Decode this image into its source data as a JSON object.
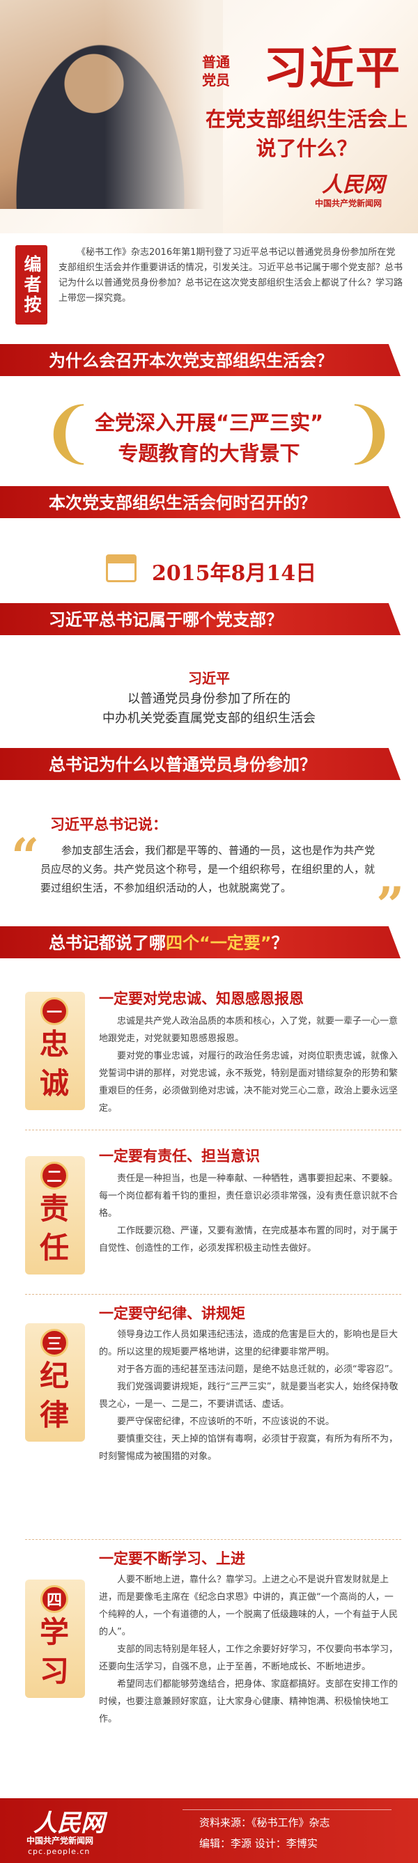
{
  "hero": {
    "line1": "普通",
    "line2": "党员",
    "name": "习近平",
    "subtitle": "在党支部组织生活会上说了什么？",
    "logo": "人民网",
    "logo_sub": "中国共产党新闻网"
  },
  "editor_note": {
    "badge": "编者按",
    "text": "《秘书工作》杂志2016年第1期刊登了习近平总书记以普通党员身份参加所在党支部组织生活会并作重要讲话的情况，引发关注。习近平总书记属于哪个党支部？总书记为什么以普通党员身份参加？总书记在这次党支部组织生活会上都说了什么？学习路上带您一探究竟。"
  },
  "sections": {
    "s1": "为什么会召开本次党支部组织生活会？",
    "s2": "本次党支部组织生活会何时召开的？",
    "s3": "习近平总书记属于哪个党支部？",
    "s4": "总书记为什么以普通党员身份参加？",
    "s5_pre": "总书记都说了哪",
    "s5_gold": "四个“一定要”",
    "s5_post": "？"
  },
  "background": {
    "line1": "全党深入开展“三严三实”",
    "line2": "专题教育的大背景下"
  },
  "date": "2015年8月14日",
  "branch": {
    "name": "习近平",
    "line1": "以普通党员身份参加了所在的",
    "line2": "中办机关党委直属党支部的组织生活会"
  },
  "reason": {
    "head": "习近平总书记说：",
    "text": "参加支部生活会，我们都是平等的、普通的一员，这也是作为共产党员应尽的义务。共产党员这个称号，是一个组织称号，在组织里的人，就要过组织生活，不参加组织活动的人，也就脱离党了。"
  },
  "musts": [
    {
      "num": "一",
      "chars": [
        "忠",
        "诚"
      ],
      "title": "一定要对党忠诚、知恩感恩报恩",
      "paragraphs": [
        "忠诚是共产党人政治品质的本质和核心，入了党，就要一辈子一心一意地跟党走，对党就要知恩感恩报恩。",
        "要对党的事业忠诚，对履行的政治任务忠诚，对岗位职责忠诚，就像入党誓词中讲的那样，对党忠诚，永不叛党，特别是面对错综复杂的形势和繁重艰巨的任务，必须做到绝对忠诚，决不能对党三心二意，政治上要永远坚定。"
      ]
    },
    {
      "num": "二",
      "chars": [
        "责",
        "任"
      ],
      "title": "一定要有责任、担当意识",
      "paragraphs": [
        "责任是一种担当，也是一种奉献、一种牺牲，遇事要担起来、不要躲。每一个岗位都有着千钧的重担，责任意识必须非常强，没有责任意识就不合格。",
        "工作既要沉稳、严谨，又要有激情，在完成基本布置的同时，对于属于自觉性、创造性的工作，必须发挥积极主动性去做好。"
      ]
    },
    {
      "num": "三",
      "chars": [
        "纪",
        "律"
      ],
      "title": "一定要守纪律、讲规矩",
      "paragraphs": [
        "领导身边工作人员如果违纪违法，造成的危害是巨大的，影响也是巨大的。所以这里的规矩要严格地讲，这里的纪律要非常严明。",
        "对于各方面的违纪甚至违法问题，是绝不姑息迁就的，必须“零容忍”。",
        "我们党强调要讲规矩，践行“三严三实”，就是要当老实人，始终保持敬畏之心，一是一、二是二，不要讲谎话、虚话。",
        "要严守保密纪律，不应该听的不听，不应该说的不说。",
        "要慎重交往，天上掉的馅饼有毒啊，必须甘于寂寞，有所为有所不为，时刻警惕成为被围猎的对象。"
      ]
    },
    {
      "num": "四",
      "chars": [
        "学",
        "习"
      ],
      "title": "一定要不断学习、上进",
      "paragraphs": [
        "人要不断地上进，靠什么？靠学习。上进之心不是说升官发财就是上进，而是要像毛主席在《纪念白求恩》中讲的，真正做“一个高尚的人，一个纯粹的人，一个有道德的人，一个脱离了低级趣味的人，一个有益于人民的人”。",
        "支部的同志特别是年轻人，工作之余要好好学习，不仅要向书本学习，还要向生活学习，自强不息，止于至善，不断地成长、不断地进步。",
        "希望同志们都能够劳逸结合，把身体、家庭都搞好。支部在安排工作的时候，也要注意兼顾好家庭，让大家身心健康、精神饱满、积极愉快地工作。"
      ]
    }
  ],
  "footer": {
    "logo": "人民网",
    "logo_sub": "中国共产党新闻网",
    "url": "cpc.people.cn",
    "source": "资料来源：《秘书工作》杂志",
    "credit": "编辑：李源    设计：李博实"
  }
}
